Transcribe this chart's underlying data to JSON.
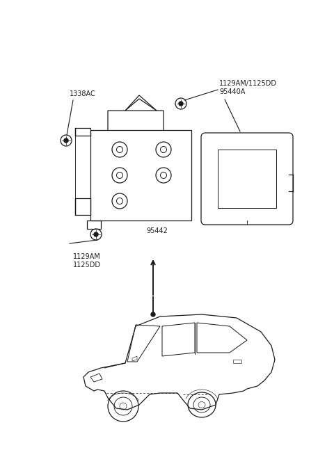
{
  "bg_color": "#ffffff",
  "line_color": "#1a1a1a",
  "text_color": "#1a1a1a",
  "figsize": [
    4.8,
    6.57
  ],
  "dpi": 100,
  "label_1338AC": "1338AC",
  "label_top_part": "1129AM/1125DD",
  "label_95440A": "95440A",
  "label_95442": "95442",
  "label_1129AM": "1129AM",
  "label_1125DD": "1125DD",
  "fontsize": 7.0
}
